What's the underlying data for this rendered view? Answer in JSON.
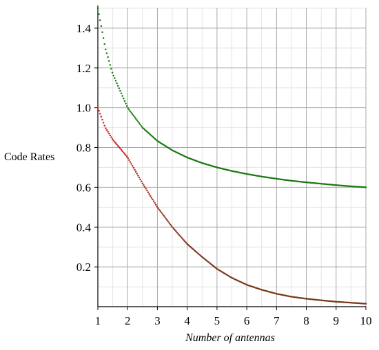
{
  "chart_data": {
    "type": "line",
    "title": "",
    "xlabel": "Number of antennas",
    "ylabel": "Code Rates",
    "xlim": [
      1,
      10
    ],
    "ylim": [
      0,
      1.5
    ],
    "x_ticks": [
      "1",
      "2",
      "3",
      "4",
      "5",
      "6",
      "7",
      "8",
      "9",
      "10"
    ],
    "y_ticks": [
      "0.2",
      "0.4",
      "0.6",
      "0.8",
      "1.0",
      "1.2",
      "1.4"
    ],
    "grid": true,
    "legend": "none",
    "x": [
      1,
      1.25,
      1.5,
      2,
      2.5,
      3,
      3.5,
      4,
      4.5,
      5,
      5.5,
      6,
      6.5,
      7,
      7.5,
      8,
      8.5,
      9,
      9.5,
      10
    ],
    "series": [
      {
        "color": "#1a7a10",
        "values": [
          1.5,
          1.3,
          1.17,
          1.0,
          0.9,
          0.833,
          0.786,
          0.75,
          0.722,
          0.7,
          0.682,
          0.667,
          0.654,
          0.643,
          0.633,
          0.625,
          0.618,
          0.611,
          0.605,
          0.6
        ]
      },
      {
        "color_start": "#e0201c",
        "color_end": "#7a3a1a",
        "values": [
          1.0,
          0.9,
          0.84,
          0.75,
          0.62,
          0.5,
          0.4,
          0.315,
          0.25,
          0.19,
          0.145,
          0.11,
          0.085,
          0.065,
          0.05,
          0.04,
          0.032,
          0.025,
          0.02,
          0.015
        ]
      }
    ]
  }
}
